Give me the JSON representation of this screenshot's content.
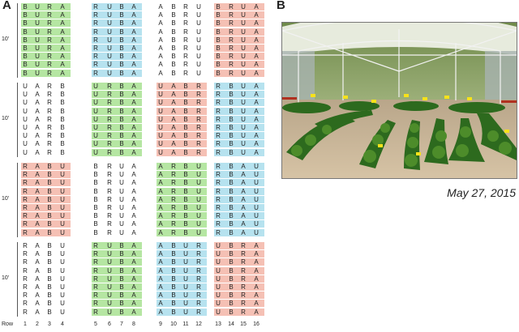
{
  "panels": {
    "a_label": "A",
    "b_label": "B"
  },
  "block_length_label": "10'",
  "row_axis_label": "Row",
  "row_numbers": [
    "1",
    "2",
    "3",
    "4",
    "5",
    "6",
    "7",
    "8",
    "9",
    "10",
    "11",
    "12",
    "13",
    "14",
    "15",
    "16"
  ],
  "colors": {
    "green": "#b5e6a2",
    "blue": "#b6e2ef",
    "red": "#f5c0b4",
    "white": "#ffffff"
  },
  "blocks": [
    {
      "groups": [
        {
          "letters": [
            "B",
            "U",
            "R",
            "A"
          ],
          "color": "green"
        },
        {
          "letters": [
            "R",
            "U",
            "B",
            "A"
          ],
          "color": "blue"
        },
        {
          "letters": [
            "A",
            "B",
            "R",
            "U"
          ],
          "color": "white"
        },
        {
          "letters": [
            "B",
            "R",
            "U",
            "A"
          ],
          "color": "red"
        }
      ]
    },
    {
      "groups": [
        {
          "letters": [
            "U",
            "A",
            "R",
            "B"
          ],
          "color": "white"
        },
        {
          "letters": [
            "U",
            "R",
            "B",
            "A"
          ],
          "color": "green"
        },
        {
          "letters": [
            "U",
            "A",
            "B",
            "R"
          ],
          "color": "red"
        },
        {
          "letters": [
            "R",
            "B",
            "U",
            "A"
          ],
          "color": "blue"
        }
      ]
    },
    {
      "groups": [
        {
          "letters": [
            "R",
            "A",
            "B",
            "U"
          ],
          "color": "red"
        },
        {
          "letters": [
            "B",
            "R",
            "U",
            "A"
          ],
          "color": "white"
        },
        {
          "letters": [
            "A",
            "R",
            "B",
            "U"
          ],
          "color": "green"
        },
        {
          "letters": [
            "R",
            "B",
            "A",
            "U"
          ],
          "color": "blue"
        }
      ]
    },
    {
      "groups": [
        {
          "letters": [
            "R",
            "A",
            "B",
            "U"
          ],
          "color": "white"
        },
        {
          "letters": [
            "R",
            "U",
            "B",
            "A"
          ],
          "color": "green"
        },
        {
          "letters": [
            "A",
            "B",
            "U",
            "R"
          ],
          "color": "blue"
        },
        {
          "letters": [
            "U",
            "B",
            "R",
            "A"
          ],
          "color": "red"
        }
      ]
    }
  ],
  "photo": {
    "date": "May 27, 2015",
    "flag_color": "#f7e21a"
  }
}
